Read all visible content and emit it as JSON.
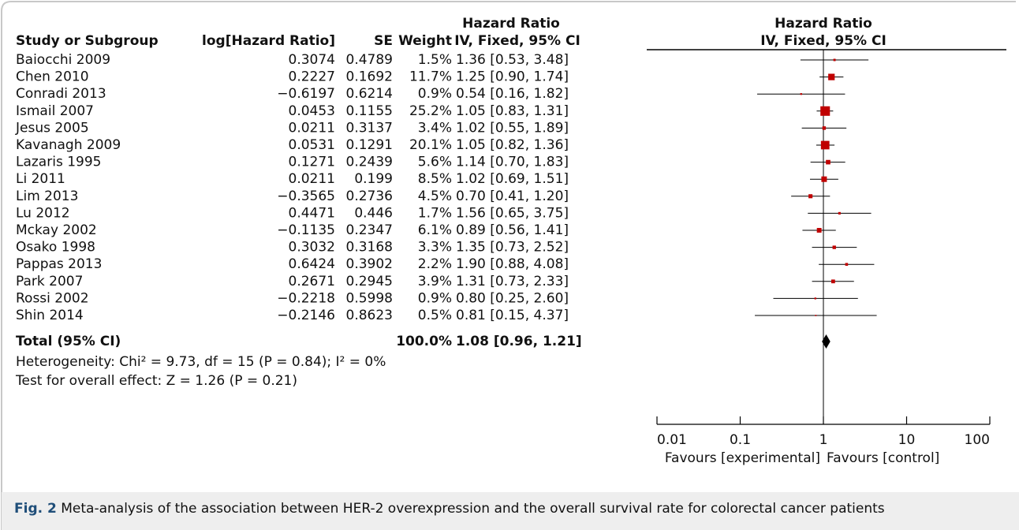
{
  "chart_data": {
    "type": "forest",
    "headers": {
      "study": "Study or Subgroup",
      "log_hr": "log[Hazard Ratio]",
      "se": "SE",
      "weight": "Weight",
      "ci_top": "Hazard Ratio",
      "ci_bottom": "IV, Fixed, 95% CI"
    },
    "plot_title": "Hazard Ratio",
    "plot_subtitle": "IV, Fixed, 95% CI",
    "studies": [
      "Baiocchi 2009",
      "Chen 2010",
      "Conradi 2013",
      "Ismail 2007",
      "Jesus 2005",
      "Kavanagh 2009",
      "Lazaris 1995",
      "Li 2011",
      "Lim 2013",
      "Lu 2012",
      "Mckay 2002",
      "Osako 1998",
      "Pappas 2013",
      "Park 2007",
      "Rossi 2002",
      "Shin 2014"
    ],
    "log_hr": [
      "0.3074",
      "0.2227",
      "−0.6197",
      "0.0453",
      "0.0211",
      "0.0531",
      "0.1271",
      "0.0211",
      "−0.3565",
      "0.4471",
      "−0.1135",
      "0.3032",
      "0.6424",
      "0.2671",
      "−0.2218",
      "−0.2146"
    ],
    "se": [
      0.4789,
      0.1692,
      0.6214,
      0.1155,
      0.3137,
      0.1291,
      0.2439,
      0.199,
      0.2736,
      0.446,
      0.2347,
      0.3168,
      0.3902,
      0.2945,
      0.5998,
      0.8623
    ],
    "weight": [
      1.5,
      11.7,
      0.9,
      25.2,
      3.4,
      20.1,
      5.6,
      8.5,
      4.5,
      1.7,
      6.1,
      3.3,
      2.2,
      3.9,
      0.9,
      0.5
    ],
    "weight_labels": [
      "1.5%",
      "11.7%",
      "0.9%",
      "25.2%",
      "3.4%",
      "20.1%",
      "5.6%",
      "8.5%",
      "4.5%",
      "1.7%",
      "6.1%",
      "3.3%",
      "2.2%",
      "3.9%",
      "0.9%",
      "0.5%"
    ],
    "hr": [
      1.36,
      1.25,
      0.54,
      1.05,
      1.02,
      1.05,
      1.14,
      1.02,
      0.7,
      1.56,
      0.89,
      1.35,
      1.9,
      1.31,
      0.8,
      0.81
    ],
    "lo": [
      0.53,
      0.9,
      0.16,
      0.83,
      0.55,
      0.82,
      0.7,
      0.69,
      0.41,
      0.65,
      0.56,
      0.73,
      0.88,
      0.73,
      0.25,
      0.15
    ],
    "hi": [
      3.48,
      1.74,
      1.82,
      1.31,
      1.89,
      1.36,
      1.83,
      1.51,
      1.2,
      3.75,
      1.41,
      2.52,
      4.08,
      2.33,
      2.6,
      4.37
    ],
    "ci_labels": [
      "1.36 [0.53, 3.48]",
      "1.25 [0.90, 1.74]",
      "0.54 [0.16, 1.82]",
      "1.05 [0.83, 1.31]",
      "1.02 [0.55, 1.89]",
      "1.05 [0.82, 1.36]",
      "1.14 [0.70, 1.83]",
      "1.02 [0.69, 1.51]",
      "0.70 [0.41, 1.20]",
      "1.56 [0.65, 3.75]",
      "0.89 [0.56, 1.41]",
      "1.35 [0.73, 2.52]",
      "1.90 [0.88, 4.08]",
      "1.31 [0.73, 2.33]",
      "0.80 [0.25, 2.60]",
      "0.81 [0.15, 4.37]"
    ],
    "total": {
      "label": "Total (95% CI)",
      "weight": 100,
      "weight_label": "100.0%",
      "hr": 1.08,
      "lo": 0.96,
      "hi": 1.21,
      "ci_label": "1.08 [0.96, 1.21]"
    },
    "heterogeneity": "Heterogeneity: Chi² = 9.73, df = 15 (P = 0.84); I² = 0%",
    "overall_effect": "Test for overall effect: Z = 1.26 (P = 0.21)",
    "xscale": "log",
    "xlim": [
      0.01,
      100
    ],
    "xticks": [
      0.01,
      0.1,
      1,
      10,
      100
    ],
    "favours_left": "Favours [experimental]",
    "favours_right": "Favours [control]",
    "color": "#c00000"
  },
  "caption": {
    "label": "Fig. 2",
    "text": "Meta-analysis of the association between HER-2 overexpression and the overall survival rate for colorectal cancer patients"
  }
}
